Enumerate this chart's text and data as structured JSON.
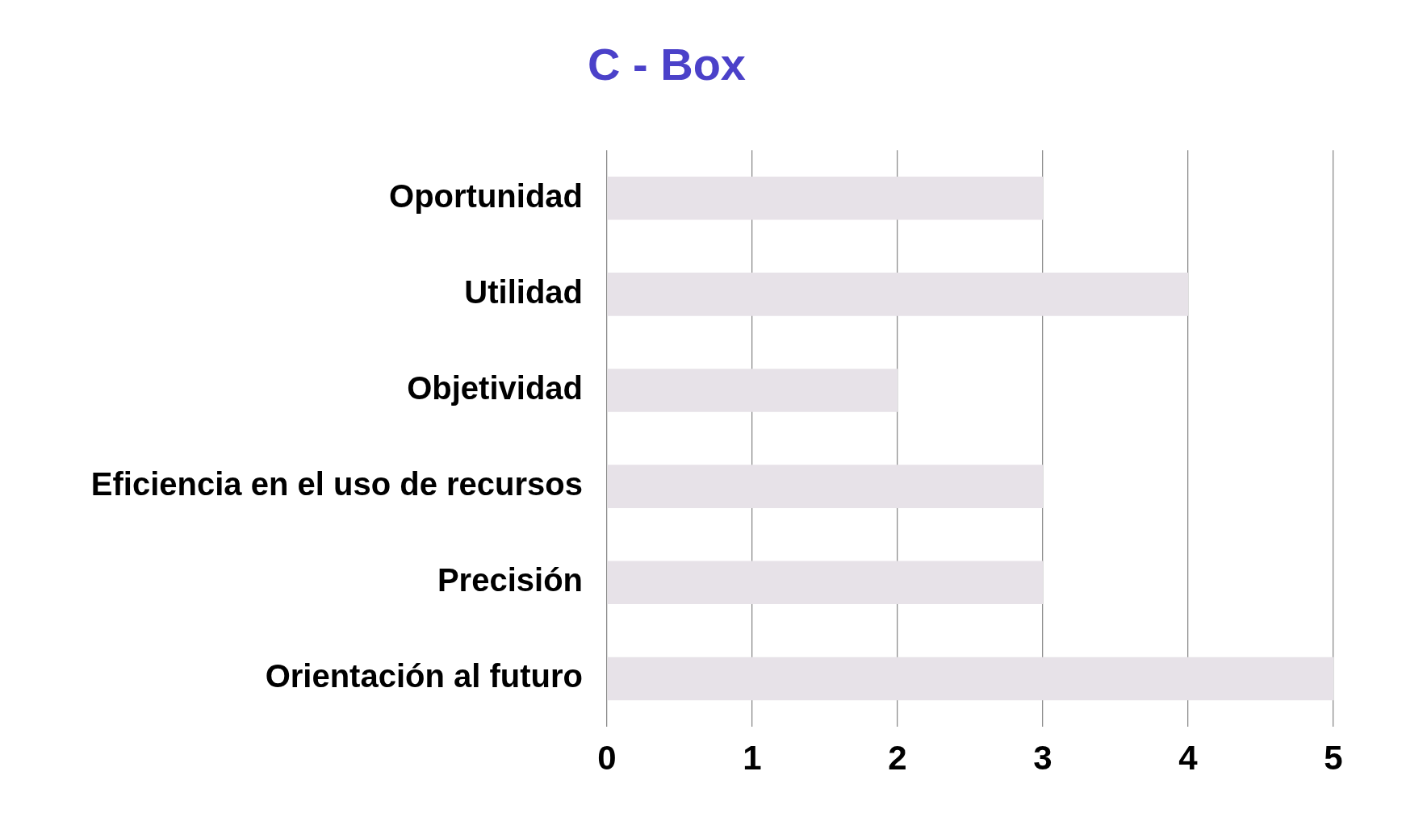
{
  "chart_data": {
    "type": "bar",
    "title": "C - Box",
    "orientation": "horizontal",
    "categories": [
      "Oportunidad",
      "Utilidad",
      "Objetividad",
      "Eficiencia en el uso de recursos",
      "Precisión",
      "Orientación al futuro"
    ],
    "values": [
      3,
      4,
      2,
      3,
      3,
      5
    ],
    "color": "#e7e2e8",
    "xlim": [
      0,
      5
    ],
    "xticks": [
      0,
      1,
      2,
      3,
      4,
      5
    ],
    "grid": "x"
  }
}
